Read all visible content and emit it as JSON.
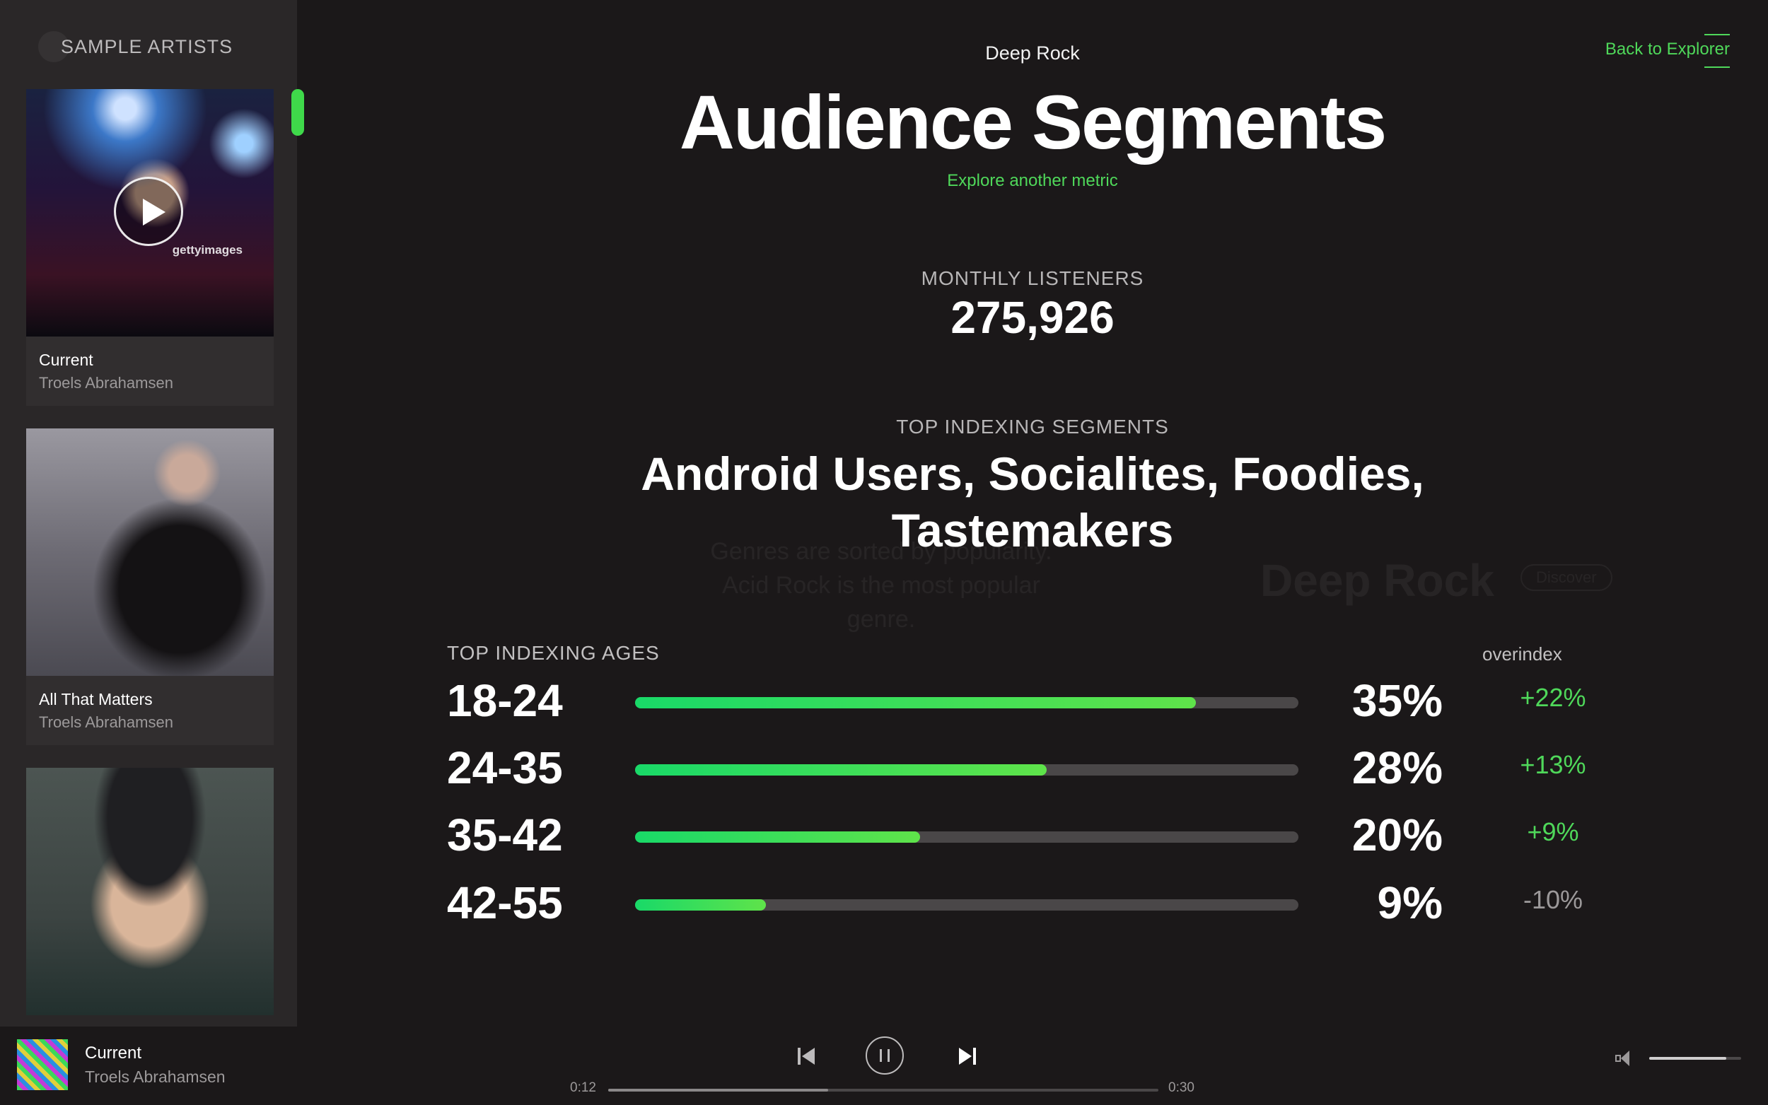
{
  "sidebar": {
    "title": "SAMPLE ARTISTS",
    "cards": [
      {
        "song": "Current",
        "artist": "Troels Abrahamsen",
        "watermark": "gettyimages"
      },
      {
        "song": "All That Matters",
        "artist": "Troels Abrahamsen"
      },
      {
        "song": "",
        "artist": ""
      }
    ]
  },
  "header": {
    "back_link": "Back to Explorer",
    "genre": "Deep Rock",
    "title": "Audience Segments",
    "explore_link": "Explore another metric"
  },
  "monthly_listeners": {
    "label": "MONTHLY LISTENERS",
    "value": "275,926"
  },
  "segments": {
    "label": "TOP INDEXING SEGMENTS",
    "value": "Android Users, Socialites, Foodies, Tastemakers"
  },
  "background_ghost": {
    "line1": "Genres are sorted by popularity.",
    "line2": "Acid Rock is the most popular",
    "line3": "genre.",
    "genre": "Deep Rock",
    "button": "Discover"
  },
  "ages": {
    "label": "TOP INDEXING AGES",
    "overindex_label": "overindex",
    "rows": [
      {
        "age": "18-24",
        "percent": "35%",
        "share": 0.845,
        "overindex": "+22%",
        "positive": true
      },
      {
        "age": "24-35",
        "percent": "28%",
        "share": 0.62,
        "overindex": "+13%",
        "positive": true
      },
      {
        "age": "35-42",
        "percent": "20%",
        "share": 0.43,
        "overindex": "+9%",
        "positive": true
      },
      {
        "age": "42-55",
        "percent": "9%",
        "share": 0.197,
        "overindex": "-10%",
        "positive": false
      }
    ]
  },
  "player": {
    "song": "Current",
    "artist": "Troels Abrahamsen",
    "elapsed": "0:12",
    "duration": "0:30",
    "progress": 0.4,
    "volume": 0.84
  },
  "colors": {
    "accent": "#4fd85a",
    "negative": "#9c999a",
    "background": "#1b1819"
  }
}
